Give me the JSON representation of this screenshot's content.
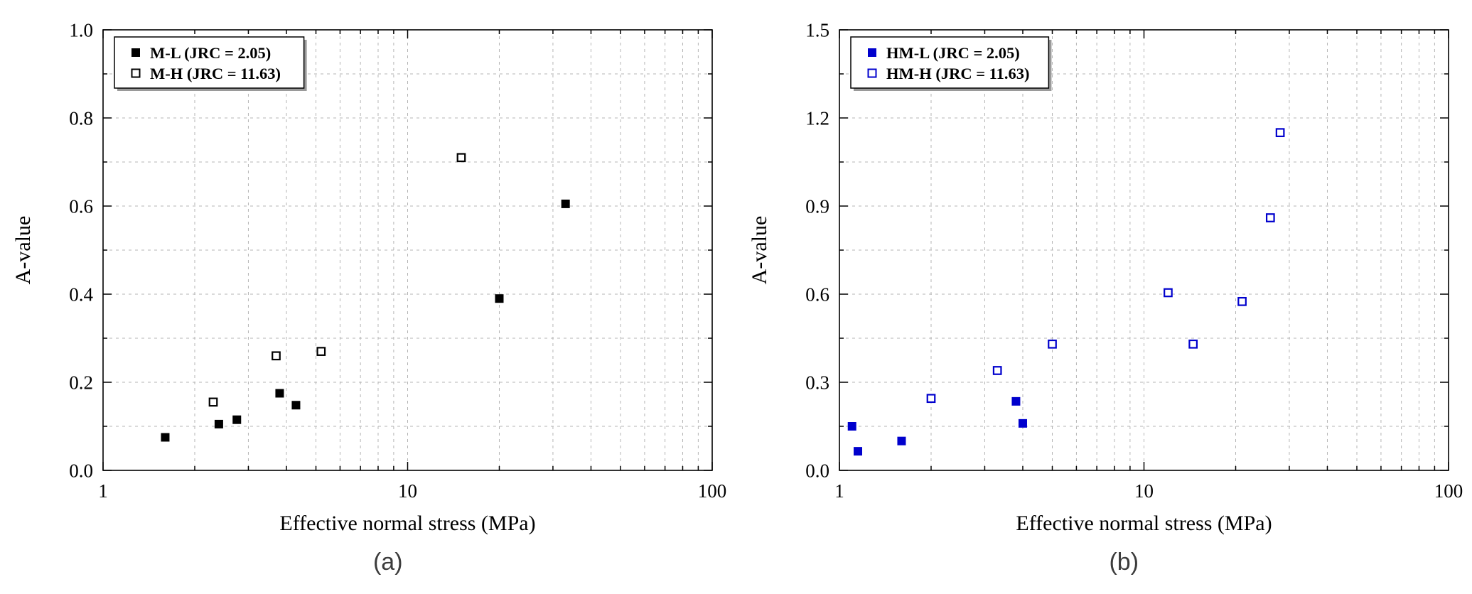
{
  "page": {
    "background": "#ffffff"
  },
  "styles": {
    "grid_color": "#b4b4b4",
    "frame_color": "#000000",
    "caption_color": "#3c3c3c"
  },
  "chart_data": [
    {
      "type": "scatter",
      "caption": "(a)",
      "title": "",
      "xlabel": "Effective normal stress (MPa)",
      "ylabel": "A-value",
      "xscale": "log",
      "xlim": [
        1,
        100
      ],
      "ylim": [
        0.0,
        1.0
      ],
      "xticks": [
        1,
        10,
        100
      ],
      "xtick_labels": [
        "1",
        "10",
        "100"
      ],
      "yticks": [
        0.0,
        0.2,
        0.4,
        0.6,
        0.8,
        1.0
      ],
      "ytick_labels": [
        "0.0",
        "0.2",
        "0.4",
        "0.6",
        "0.8",
        "1.0"
      ],
      "ygrid_step": 0.1,
      "grid": "dashed",
      "legend_position": "top-left",
      "series": [
        {
          "name": "M-L (JRC = 2.05)",
          "marker": "filled-square",
          "color": "#000000",
          "points": [
            [
              1.6,
              0.075
            ],
            [
              2.4,
              0.105
            ],
            [
              2.75,
              0.115
            ],
            [
              3.8,
              0.175
            ],
            [
              4.3,
              0.148
            ],
            [
              20,
              0.39
            ],
            [
              33,
              0.605
            ]
          ]
        },
        {
          "name": "M-H (JRC = 11.63)",
          "marker": "open-square",
          "color": "#000000",
          "points": [
            [
              2.3,
              0.155
            ],
            [
              3.7,
              0.26
            ],
            [
              5.2,
              0.27
            ],
            [
              15,
              0.71
            ]
          ]
        }
      ]
    },
    {
      "type": "scatter",
      "caption": "(b)",
      "title": "",
      "xlabel": "Effective normal stress (MPa)",
      "ylabel": "A-value",
      "xscale": "log",
      "xlim": [
        1,
        100
      ],
      "ylim": [
        0.0,
        1.5
      ],
      "xticks": [
        1,
        10,
        100
      ],
      "xtick_labels": [
        "1",
        "10",
        "100"
      ],
      "yticks": [
        0.0,
        0.3,
        0.6,
        0.9,
        1.2,
        1.5
      ],
      "ytick_labels": [
        "0.0",
        "0.3",
        "0.6",
        "0.9",
        "1.2",
        "1.5"
      ],
      "ygrid_step": 0.15,
      "grid": "dashed",
      "legend_position": "top-left",
      "series": [
        {
          "name": "HM-L (JRC = 2.05)",
          "marker": "filled-square",
          "color": "#0000cd",
          "points": [
            [
              1.1,
              0.15
            ],
            [
              1.15,
              0.065
            ],
            [
              1.6,
              0.1
            ],
            [
              3.8,
              0.235
            ],
            [
              4.0,
              0.16
            ]
          ]
        },
        {
          "name": "HM-H (JRC = 11.63)",
          "marker": "open-square",
          "color": "#0000cd",
          "points": [
            [
              2.0,
              0.245
            ],
            [
              3.3,
              0.34
            ],
            [
              5.0,
              0.43
            ],
            [
              12,
              0.605
            ],
            [
              14.5,
              0.43
            ],
            [
              21,
              0.575
            ],
            [
              26,
              0.86
            ],
            [
              28,
              1.15
            ]
          ]
        }
      ]
    }
  ]
}
